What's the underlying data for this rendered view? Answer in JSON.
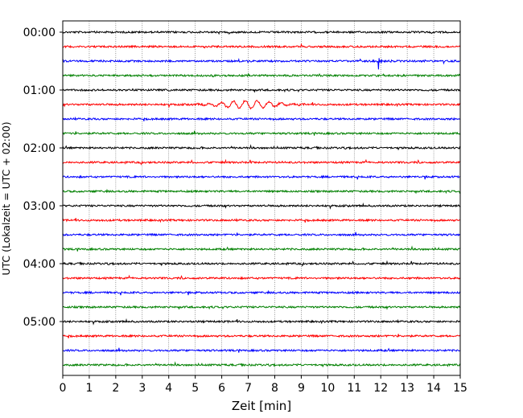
{
  "chart_data": {
    "type": "line",
    "title": "",
    "xlabel": "Zeit  [min]",
    "ylabel": "UTC (Lokalzeit = UTC + 02:00)",
    "x_ticks": [
      0,
      1,
      2,
      3,
      4,
      5,
      6,
      7,
      8,
      9,
      10,
      11,
      12,
      13,
      14,
      15
    ],
    "x_tick_labels": [
      "0",
      "1",
      "2",
      "3",
      "4",
      "5",
      "6",
      "7",
      "8",
      "9",
      "10",
      "11",
      "12",
      "13",
      "14",
      "15"
    ],
    "xlim": [
      0,
      15
    ],
    "ylim": [
      "00:00",
      "06:00"
    ],
    "y_ticks": [
      "00:00",
      "01:00",
      "02:00",
      "03:00",
      "04:00",
      "05:00"
    ],
    "grid": "vertical dotted",
    "legend": "none",
    "trace_interval_min": 15,
    "trace_colors": [
      "#000000",
      "#ff0000",
      "#0000ff",
      "#008000"
    ],
    "traces": [
      {
        "start": "00:00",
        "color": "#000000"
      },
      {
        "start": "00:15",
        "color": "#ff0000"
      },
      {
        "start": "00:30",
        "color": "#0000ff",
        "event": {
          "time_min": 11.9,
          "amplitude": "spike",
          "duration_min": 0.8
        }
      },
      {
        "start": "00:45",
        "color": "#008000"
      },
      {
        "start": "01:00",
        "color": "#000000"
      },
      {
        "start": "01:15",
        "color": "#ff0000",
        "event": {
          "time_min": 7.0,
          "amplitude": "wave train",
          "duration_min": 5.0
        }
      },
      {
        "start": "01:30",
        "color": "#0000ff"
      },
      {
        "start": "01:45",
        "color": "#008000"
      },
      {
        "start": "02:00",
        "color": "#000000"
      },
      {
        "start": "02:15",
        "color": "#ff0000"
      },
      {
        "start": "02:30",
        "color": "#0000ff"
      },
      {
        "start": "02:45",
        "color": "#008000"
      },
      {
        "start": "03:00",
        "color": "#000000"
      },
      {
        "start": "03:15",
        "color": "#ff0000"
      },
      {
        "start": "03:30",
        "color": "#0000ff"
      },
      {
        "start": "03:45",
        "color": "#008000"
      },
      {
        "start": "04:00",
        "color": "#000000"
      },
      {
        "start": "04:15",
        "color": "#ff0000"
      },
      {
        "start": "04:30",
        "color": "#0000ff"
      },
      {
        "start": "04:45",
        "color": "#008000"
      },
      {
        "start": "05:00",
        "color": "#000000"
      },
      {
        "start": "05:15",
        "color": "#ff0000"
      },
      {
        "start": "05:30",
        "color": "#0000ff"
      },
      {
        "start": "05:45",
        "color": "#008000"
      }
    ]
  }
}
